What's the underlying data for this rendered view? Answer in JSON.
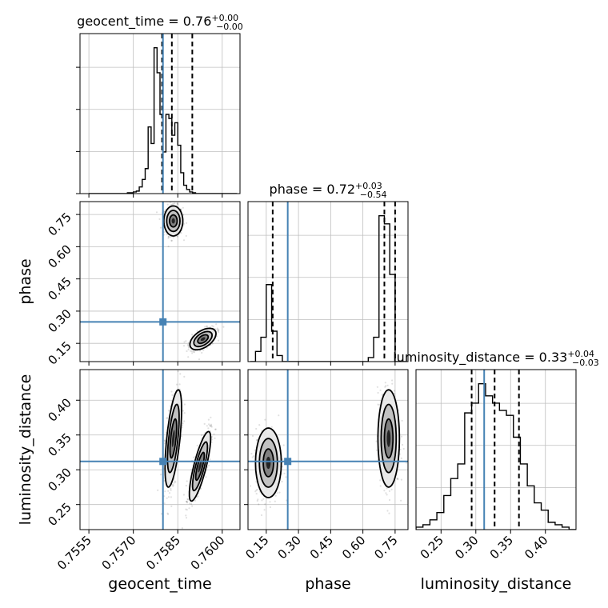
{
  "chart_data": {
    "type": "corner",
    "parameters": [
      "geocent_time",
      "phase",
      "luminosity_distance"
    ],
    "truth": {
      "geocent_time": 0.758,
      "phase": 0.25,
      "luminosity_distance": 0.312
    },
    "truth_color": "#4682b4",
    "hist_color": "#000000",
    "grid": true,
    "titles": [
      {
        "name": "geocent_time",
        "value": "0.76",
        "plus": "+0.00",
        "minus": "−0.00"
      },
      {
        "name": "phase",
        "value": "0.72",
        "plus": "+0.03",
        "minus": "−0.54"
      },
      {
        "name": "luminosity_distance",
        "value": "0.33",
        "plus": "+0.04",
        "minus": "−0.03"
      }
    ],
    "axes": {
      "geocent_time": {
        "range": [
          0.7552,
          0.7606
        ],
        "ticks": [
          "0.7555",
          "0.7570",
          "0.7585",
          "0.7600"
        ],
        "tick_values": [
          0.7555,
          0.757,
          0.7585,
          0.76
        ]
      },
      "phase": {
        "range": [
          0.065,
          0.81
        ],
        "ticks": [
          "0.15",
          "0.30",
          "0.45",
          "0.60",
          "0.75"
        ],
        "tick_values": [
          0.15,
          0.3,
          0.45,
          0.6,
          0.75
        ]
      },
      "luminosity_distance": {
        "range": [
          0.214,
          0.444
        ],
        "ticks": [
          "0.25",
          "0.30",
          "0.35",
          "0.40"
        ],
        "tick_values": [
          0.25,
          0.3,
          0.35,
          0.4
        ]
      }
    },
    "histograms": {
      "geocent_time": {
        "bins": [
          0.7555,
          0.7556,
          0.7557,
          0.7558,
          0.7559,
          0.756,
          0.7561,
          0.7562,
          0.7563,
          0.7564,
          0.7565,
          0.7566,
          0.7567,
          0.7568,
          0.7569,
          0.757,
          0.7571,
          0.7572,
          0.7573,
          0.7574,
          0.7575,
          0.7576,
          0.7577,
          0.7578,
          0.7579,
          0.758,
          0.7581,
          0.7582,
          0.7583,
          0.7584,
          0.7585,
          0.7586,
          0.7587,
          0.7588,
          0.7589,
          0.759,
          0.7591,
          0.7592,
          0.7593,
          0.7594,
          0.7595,
          0.7596,
          0.7597,
          0.7598,
          0.7599,
          0.76,
          0.7601,
          0.7602,
          0.7603,
          0.7604,
          0.7605
        ],
        "counts": [
          0,
          0,
          0,
          0,
          0,
          0,
          0,
          0,
          0,
          0,
          0,
          0,
          0,
          1,
          1,
          2,
          3,
          8,
          17,
          30,
          80,
          60,
          175,
          145,
          95,
          50,
          95,
          90,
          70,
          85,
          58,
          25,
          10,
          5,
          2,
          1,
          0,
          0,
          0,
          0,
          0,
          0,
          0,
          0,
          0,
          0,
          0,
          0,
          0,
          0
        ],
        "quantiles": [
          0.75797,
          0.7583,
          0.75899
        ]
      },
      "phase": {
        "bins": [
          0.075,
          0.1,
          0.125,
          0.15,
          0.175,
          0.2,
          0.225,
          0.25,
          0.275,
          0.3,
          0.325,
          0.35,
          0.375,
          0.4,
          0.425,
          0.45,
          0.475,
          0.5,
          0.525,
          0.55,
          0.575,
          0.6,
          0.625,
          0.65,
          0.675,
          0.7,
          0.725,
          0.75,
          0.775,
          0.8
        ],
        "counts": [
          0,
          5,
          12,
          38,
          15,
          3,
          0,
          0,
          0,
          0,
          0,
          0,
          0,
          0,
          0,
          0,
          0,
          0,
          0,
          0,
          0,
          0,
          2,
          12,
          72,
          68,
          43,
          0,
          0
        ],
        "quantiles": [
          0.18,
          0.7,
          0.75
        ]
      },
      "luminosity_distance": {
        "bins": [
          0.214,
          0.224,
          0.234,
          0.244,
          0.254,
          0.264,
          0.274,
          0.284,
          0.294,
          0.304,
          0.314,
          0.324,
          0.334,
          0.344,
          0.354,
          0.364,
          0.374,
          0.384,
          0.394,
          0.404,
          0.414,
          0.424,
          0.434,
          0.444
        ],
        "counts": [
          1,
          2,
          4,
          7,
          14,
          21,
          27,
          48,
          52,
          60,
          55,
          52,
          49,
          47,
          38,
          27,
          18,
          11,
          8,
          3,
          2,
          1,
          0
        ],
        "quantiles": [
          0.294,
          0.327,
          0.362
        ]
      }
    },
    "contours": {
      "geocent_time-phase": {
        "modes": [
          {
            "x": 0.75835,
            "y": 0.72,
            "sx": 0.00016,
            "sy": 0.035,
            "rho": 0.0
          },
          {
            "x": 0.75935,
            "y": 0.17,
            "sx": 0.00022,
            "sy": 0.025,
            "rho": 0.5
          }
        ]
      },
      "geocent_time-luminosity_distance": {
        "modes": [
          {
            "x": 0.75835,
            "y": 0.345,
            "sx": 0.00014,
            "sy": 0.035,
            "rho": 0.6
          },
          {
            "x": 0.75925,
            "y": 0.305,
            "sx": 0.00018,
            "sy": 0.025,
            "rho": 0.8
          }
        ]
      },
      "phase-luminosity_distance": {
        "modes": [
          {
            "x": 0.16,
            "y": 0.31,
            "sx": 0.03,
            "sy": 0.025,
            "rho": 0.0
          },
          {
            "x": 0.72,
            "y": 0.345,
            "sx": 0.025,
            "sy": 0.035,
            "rho": 0.0
          }
        ]
      }
    }
  }
}
